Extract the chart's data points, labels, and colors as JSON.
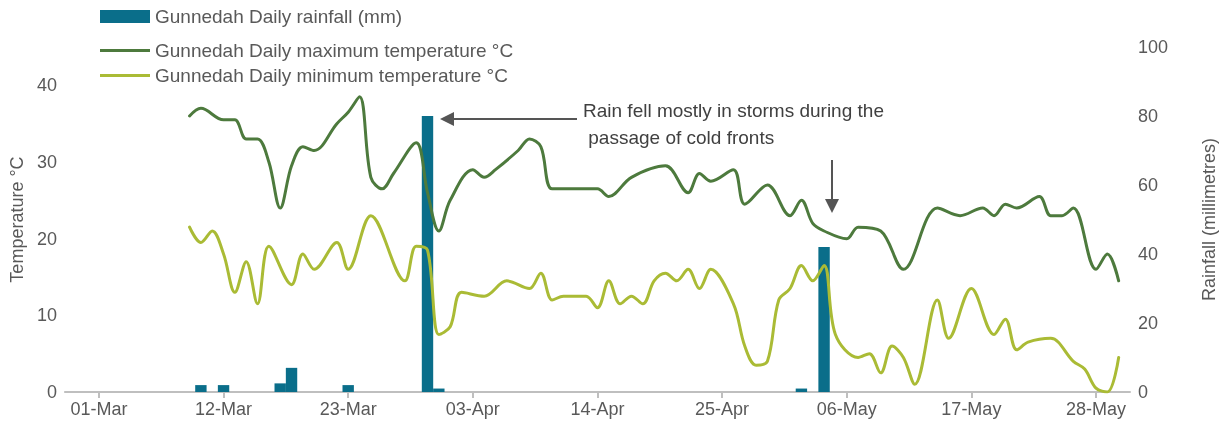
{
  "chart_data": {
    "type": "line",
    "ylabel": "Temperature °C",
    "y2label": "Rainfall (millimetres)",
    "annotations": [
      "Rain fell mostly in storms during the passage of cold fronts"
    ],
    "xlim": [
      "--02-26",
      "--05-31"
    ],
    "xticks": [
      {
        "value": "--03-01",
        "label": "01-Mar"
      },
      {
        "value": "--03-12",
        "label": "12-Mar"
      },
      {
        "value": "--03-23",
        "label": "23-Mar"
      },
      {
        "value": "--04-03",
        "label": "03-Apr"
      },
      {
        "value": "--04-14",
        "label": "14-Apr"
      },
      {
        "value": "--04-25",
        "label": "25-Apr"
      },
      {
        "value": "--05-06",
        "label": "06-May"
      },
      {
        "value": "--05-17",
        "label": "17-May"
      },
      {
        "value": "--05-28",
        "label": "28-May"
      }
    ],
    "ylim": [
      0,
      45
    ],
    "yticks": [
      0,
      10,
      20,
      30,
      40
    ],
    "y2lim": [
      0,
      100
    ],
    "y2ticks": [
      0,
      20,
      40,
      60,
      80,
      100
    ],
    "legend": "top left",
    "marker": "none",
    "grid": false,
    "series": [
      {
        "name": "Gunnedah Daily rainfall (mm)",
        "type": "bar",
        "axis": "y2",
        "color": "#0a6e8a",
        "x": [
          "--03-10",
          "--03-12",
          "--03-17",
          "--03-18",
          "--03-23",
          "--03-30",
          "--03-31",
          "--05-02",
          "--05-04"
        ],
        "values": [
          2,
          2,
          2.5,
          7,
          2,
          80,
          1,
          1,
          42
        ]
      },
      {
        "name": "Gunnedah Daily maximum temperature °C",
        "color": "#4d7a3d",
        "x": [
          "--03-09",
          "--03-10",
          "--03-12",
          "--03-13",
          "--03-14",
          "--03-15",
          "--03-16",
          "--03-17",
          "--03-18",
          "--03-19",
          "--03-20",
          "--03-22",
          "--03-23",
          "--03-24",
          "--03-25",
          "--03-26",
          "--03-27",
          "--03-29",
          "--03-30",
          "--03-31",
          "--04-01",
          "--04-03",
          "--04-04",
          "--04-05",
          "--04-07",
          "--04-08",
          "--04-09",
          "--04-10",
          "--04-12",
          "--04-14",
          "--04-15",
          "--04-17",
          "--04-20",
          "--04-22",
          "--04-23",
          "--04-24",
          "--04-26",
          "--04-27",
          "--04-29",
          "--05-01",
          "--05-02",
          "--05-03",
          "--05-04",
          "--05-06",
          "--05-07",
          "--05-09",
          "--05-11",
          "--05-14",
          "--05-16",
          "--05-18",
          "--05-19",
          "--05-20",
          "--05-21",
          "--05-23",
          "--05-24",
          "--05-25",
          "--05-26",
          "--05-28",
          "--05-29",
          "--05-30"
        ],
        "values": [
          36,
          37,
          35.5,
          35.5,
          33,
          33,
          30,
          24,
          29.5,
          32,
          31.5,
          35,
          36.5,
          38.5,
          28,
          26.5,
          28.5,
          32.5,
          26,
          21,
          25,
          29,
          28,
          29,
          31.5,
          33,
          32,
          26.5,
          26.5,
          26.5,
          25.5,
          28,
          29.5,
          26,
          28.5,
          27.5,
          29,
          24.5,
          27,
          23,
          25,
          22,
          21,
          20,
          21.5,
          21,
          16,
          24,
          23,
          24,
          23,
          24.5,
          24,
          25.5,
          23,
          23,
          24,
          16,
          18,
          14.5
        ]
      },
      {
        "name": "Gunnedah Daily minimum temperature °C",
        "color": "#aabb35",
        "x": [
          "--03-09",
          "--03-10",
          "--03-11",
          "--03-12",
          "--03-13",
          "--03-14",
          "--03-15",
          "--03-16",
          "--03-18",
          "--03-19",
          "--03-20",
          "--03-22",
          "--03-23",
          "--03-25",
          "--03-28",
          "--03-29",
          "--03-30",
          "--03-31",
          "--04-01",
          "--04-02",
          "--04-04",
          "--04-06",
          "--04-08",
          "--04-09",
          "--04-10",
          "--04-11",
          "--04-13",
          "--04-14",
          "--04-15",
          "--04-16",
          "--04-17",
          "--04-18",
          "--04-19",
          "--04-20",
          "--04-21",
          "--04-22",
          "--04-23",
          "--04-24",
          "--04-26",
          "--04-27",
          "--04-28",
          "--04-29",
          "--04-30",
          "--05-01",
          "--05-02",
          "--05-03",
          "--05-04",
          "--05-05",
          "--05-07",
          "--05-08",
          "--05-09",
          "--05-10",
          "--05-11",
          "--05-12",
          "--05-14",
          "--05-15",
          "--05-17",
          "--05-19",
          "--05-20",
          "--05-21",
          "--05-22",
          "--05-24",
          "--05-26",
          "--05-27",
          "--05-28",
          "--05-29",
          "--05-30"
        ],
        "values": [
          21.5,
          19.5,
          21,
          18,
          13,
          17,
          11.5,
          19,
          14,
          18,
          16,
          19.5,
          16,
          23,
          14.5,
          19,
          18.5,
          7.5,
          8.5,
          13,
          12.5,
          14.5,
          13.5,
          15.5,
          12,
          12.5,
          12.5,
          11,
          14.5,
          11.5,
          12.5,
          11.5,
          14.5,
          15.5,
          14.5,
          16,
          13.5,
          16,
          11.5,
          6,
          3.5,
          4,
          12,
          13.5,
          16.5,
          14.5,
          16.5,
          7.5,
          4.5,
          5,
          2.5,
          6,
          4.5,
          1,
          12,
          7,
          13.5,
          7.5,
          9.5,
          5.5,
          6.5,
          7,
          4,
          3,
          0.5,
          0,
          4.5
        ]
      }
    ]
  }
}
